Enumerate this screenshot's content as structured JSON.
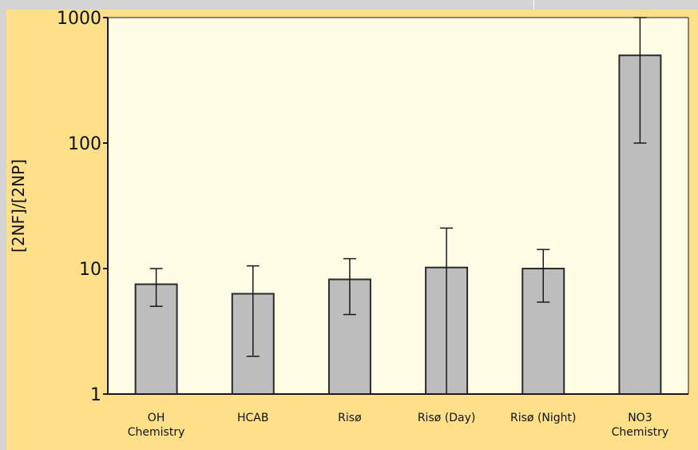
{
  "chart_data": {
    "type": "bar",
    "title": "",
    "xlabel": "",
    "ylabel": "[2NF]/[2NP]",
    "yscale": "log",
    "ylim": [
      1,
      1000
    ],
    "yticks": [
      1,
      10,
      100,
      1000
    ],
    "ytick_labels": [
      "1",
      "10",
      "100",
      "1000"
    ],
    "categories": [
      [
        "OH",
        "Chemistry"
      ],
      [
        "HCAB"
      ],
      [
        "Risø"
      ],
      [
        "Risø (Day)"
      ],
      [
        "Risø (Night)"
      ],
      [
        "NO3",
        "Chemistry"
      ]
    ],
    "values": [
      7.5,
      6.3,
      8.2,
      10.2,
      10.0,
      500
    ],
    "error_low": [
      5.0,
      2.0,
      4.3,
      1.0,
      5.4,
      100
    ],
    "error_high": [
      10.0,
      10.5,
      12.0,
      21.0,
      14.2,
      1000
    ],
    "grid": false,
    "legend": "none",
    "colors": {
      "background": "#ffe08a",
      "plot_area": "#fffde6",
      "bar_fill": "#bdbdbd",
      "bar_stroke": "#2a2a2a",
      "axis": "#1a1a1a",
      "text": "#111111"
    }
  }
}
